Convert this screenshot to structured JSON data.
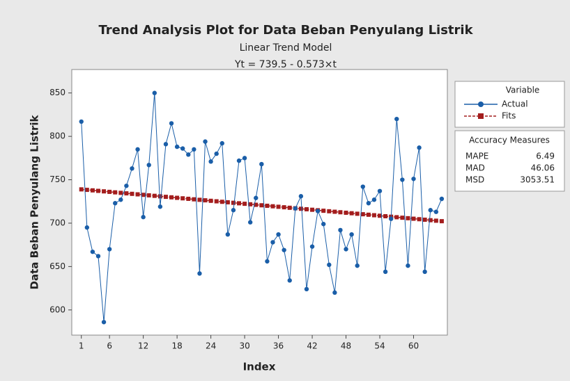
{
  "chart_data": {
    "type": "line",
    "title": "Trend Analysis Plot for Data Beban Penyulang Listrik",
    "subtitle": "Linear Trend Model",
    "equation": "Yt = 739.5 - 0.573×t",
    "x_label": "Index",
    "y_label": "Data Beban Penyulang Listrik",
    "x": [
      1,
      2,
      3,
      4,
      5,
      6,
      7,
      8,
      9,
      10,
      11,
      12,
      13,
      14,
      15,
      16,
      17,
      18,
      19,
      20,
      21,
      22,
      23,
      24,
      25,
      26,
      27,
      28,
      29,
      30,
      31,
      32,
      33,
      34,
      35,
      36,
      37,
      38,
      39,
      40,
      41,
      42,
      43,
      44,
      45,
      46,
      47,
      48,
      49,
      50,
      51,
      52,
      53,
      54,
      55,
      56,
      57,
      58,
      59,
      60,
      61,
      62,
      63,
      64,
      65
    ],
    "series": [
      {
        "name": "Actual",
        "color": "#1a5ea8",
        "marker": "circle",
        "values": [
          817,
          695,
          667,
          662,
          586,
          670,
          723,
          727,
          743,
          763,
          785,
          707,
          767,
          850,
          719,
          791,
          815,
          788,
          786,
          779,
          785,
          642,
          794,
          771,
          780,
          792,
          687,
          715,
          772,
          775,
          701,
          729,
          768,
          656,
          678,
          687,
          669,
          634,
          717,
          731,
          624,
          673,
          714,
          699,
          652,
          620,
          692,
          670,
          687,
          651,
          742,
          723,
          727,
          737,
          644,
          705,
          820,
          750,
          651,
          751,
          787,
          644,
          715,
          713,
          728
        ]
      },
      {
        "name": "Fits",
        "color": "#a31d1d",
        "marker": "square",
        "values": [
          738.927,
          738.354,
          737.781,
          737.208,
          736.635,
          736.062,
          735.489,
          734.916,
          734.343,
          733.77,
          733.197,
          732.624,
          732.051,
          731.478,
          730.905,
          730.332,
          729.759,
          729.186,
          728.613,
          728.04,
          727.467,
          726.894,
          726.321,
          725.748,
          725.175,
          724.602,
          724.029,
          723.456,
          722.883,
          722.31,
          721.737,
          721.164,
          720.591,
          720.018,
          719.445,
          718.872,
          718.299,
          717.726,
          717.153,
          716.58,
          716.007,
          715.434,
          714.861,
          714.288,
          713.715,
          713.142,
          712.569,
          711.996,
          711.423,
          710.85,
          710.277,
          709.704,
          709.131,
          708.558,
          707.985,
          707.412,
          706.839,
          706.266,
          705.693,
          705.12,
          704.547,
          703.974,
          703.401,
          702.828,
          702.255
        ]
      }
    ],
    "legend_title": "Variable",
    "legend_position": "right",
    "accuracy_measures": {
      "title": "Accuracy Measures",
      "rows": [
        {
          "name": "MAPE",
          "value": 6.49
        },
        {
          "name": "MAD",
          "value": 46.06
        },
        {
          "name": "MSD",
          "value": 3053.51
        }
      ]
    },
    "xlim": [
      -0.7,
      66.0
    ],
    "xticks": [
      1,
      6,
      12,
      18,
      24,
      30,
      36,
      42,
      48,
      54,
      60
    ],
    "ylim": [
      571,
      877
    ],
    "yticks": [
      600,
      650,
      700,
      750,
      800,
      850
    ],
    "grid": false
  }
}
